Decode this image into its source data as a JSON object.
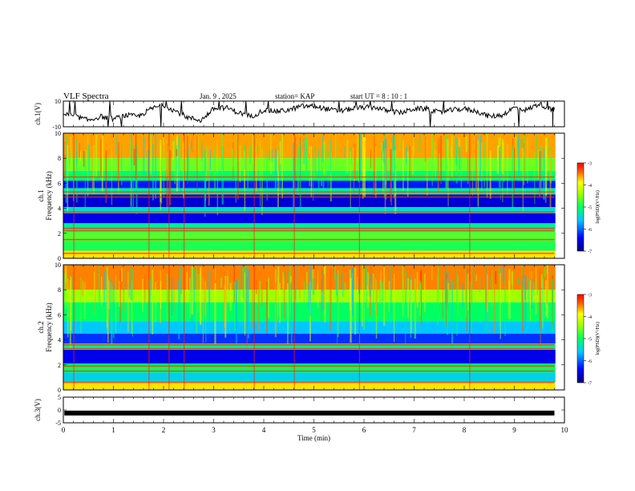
{
  "header": {
    "title": "VLF Spectra",
    "date": "Jan. 9 , 2025",
    "station": "station= KAP",
    "start": "start UT = 8 : 10 : 1"
  },
  "chart_data": [
    {
      "type": "line",
      "panel": "ch1-waveform",
      "ylabel": "ch.1(V)",
      "ylim": [
        -10,
        10
      ],
      "yticks": [
        "10",
        "-10"
      ],
      "x": [
        0,
        0.25,
        0.5,
        0.75,
        1,
        1.25,
        1.5,
        1.75,
        2,
        2.25,
        2.5,
        2.75,
        3,
        3.25,
        3.5,
        3.75,
        4,
        4.25,
        4.5,
        4.75,
        5,
        5.25,
        5.5,
        5.75,
        6,
        6.25,
        6.5,
        6.75,
        7,
        7.25,
        7.5,
        7.75,
        8,
        8.25,
        8.5,
        8.75,
        9,
        9.25,
        9.5,
        9.75,
        9.8
      ],
      "values": [
        0,
        -2,
        -5,
        -2,
        -4,
        -1,
        -2,
        4,
        7,
        2,
        -3,
        -5,
        4,
        5,
        1,
        -2,
        3,
        2,
        3,
        6,
        6,
        4,
        2,
        4,
        5,
        5,
        2,
        1,
        4,
        4,
        1,
        3,
        4,
        2,
        -2,
        -1,
        5,
        3,
        8,
        3,
        4
      ]
    },
    {
      "type": "heatmap",
      "panel": "ch1-spectrogram",
      "ylabel": "ch.1 Frequency (kHz)",
      "ylim": [
        0,
        10
      ],
      "yticks": [
        "0",
        "2",
        "4",
        "6",
        "8",
        "10"
      ],
      "colorbar": {
        "label": "log(PSD)(V²/Hz)",
        "range": [
          -7,
          -3
        ],
        "ticks": [
          "-3",
          "-4",
          "-5",
          "-6",
          "-7"
        ]
      },
      "bands": [
        {
          "f0": 10,
          "f1": 8,
          "level": -3.6
        },
        {
          "f0": 8,
          "f1": 7,
          "level": -4.6
        },
        {
          "f0": 7,
          "f1": 6.2,
          "level": -5.0
        },
        {
          "f0": 6.2,
          "f1": 5.6,
          "level": -6.3
        },
        {
          "f0": 5.6,
          "f1": 5.1,
          "level": -5.2
        },
        {
          "f0": 5.1,
          "f1": 4.1,
          "level": -6.6
        },
        {
          "f0": 4.1,
          "f1": 3.6,
          "level": -5.4
        },
        {
          "f0": 3.6,
          "f1": 2.8,
          "level": -6.5
        },
        {
          "f0": 2.8,
          "f1": 2.2,
          "level": -5.2
        },
        {
          "f0": 2.2,
          "f1": 1.4,
          "level": -4.7
        },
        {
          "f0": 1.4,
          "f1": 0.6,
          "level": -4.9
        },
        {
          "f0": 0.6,
          "f1": 0,
          "level": -3.8
        }
      ],
      "lines_khz": [
        6.5,
        5.3,
        4.9,
        3.7,
        2.4,
        2.2,
        1.5,
        0.4
      ]
    },
    {
      "type": "heatmap",
      "panel": "ch2-spectrogram",
      "ylabel": "ch.2 Frequency (kHz)",
      "ylim": [
        0,
        10
      ],
      "yticks": [
        "0",
        "2",
        "4",
        "6",
        "8",
        "10"
      ],
      "colorbar": {
        "label": "log(PSD)(V²/Hz)",
        "range": [
          -7,
          -3
        ],
        "ticks": [
          "-3",
          "-4",
          "-5",
          "-6",
          "-7"
        ]
      },
      "bands": [
        {
          "f0": 10,
          "f1": 8,
          "level": -3.5
        },
        {
          "f0": 8,
          "f1": 7,
          "level": -4.4
        },
        {
          "f0": 7,
          "f1": 5.5,
          "level": -5.0
        },
        {
          "f0": 5.5,
          "f1": 4.5,
          "level": -5.6
        },
        {
          "f0": 4.5,
          "f1": 3.7,
          "level": -6.2
        },
        {
          "f0": 3.7,
          "f1": 3.2,
          "level": -5.2
        },
        {
          "f0": 3.2,
          "f1": 2.1,
          "level": -6.5
        },
        {
          "f0": 2.1,
          "f1": 1.4,
          "level": -5.0
        },
        {
          "f0": 1.4,
          "f1": 0.6,
          "level": -5.5
        },
        {
          "f0": 0.6,
          "f1": 0,
          "level": -3.8
        }
      ],
      "lines_khz": [
        3.6,
        3.3,
        1.9,
        1.5,
        0.6
      ]
    },
    {
      "type": "line",
      "panel": "ch3-waveform",
      "ylabel": "ch.3(V)",
      "ylim": [
        -5,
        5
      ],
      "yticks": [
        "5",
        "0",
        "-5"
      ],
      "x": [
        0.02,
        9.8
      ],
      "values": [
        -1.2,
        -1.2
      ],
      "xlabel": "Time (min)",
      "xlim": [
        0,
        10
      ],
      "xticks": [
        "0",
        "1",
        "2",
        "3",
        "4",
        "5",
        "6",
        "7",
        "8",
        "9",
        "10"
      ]
    }
  ]
}
